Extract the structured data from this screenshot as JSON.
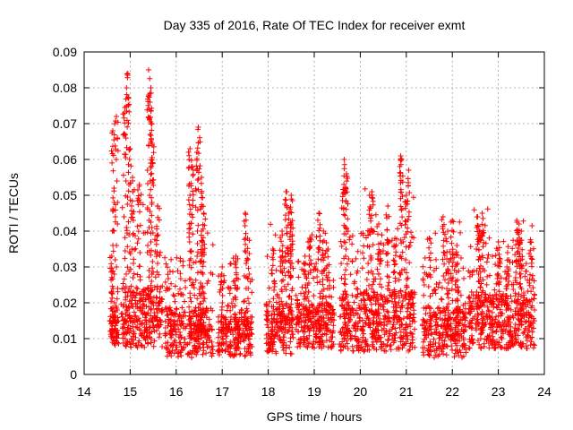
{
  "chart_data": {
    "type": "scatter",
    "title": "Day 335 of 2016, Rate Of TEC Index for receiver exmt",
    "xlabel": "GPS time / hours",
    "ylabel": "ROTI / TECUs",
    "xlim": [
      14,
      24
    ],
    "ylim": [
      0,
      0.09
    ],
    "xticks": [
      "14",
      "15",
      "16",
      "17",
      "18",
      "19",
      "20",
      "21",
      "22",
      "23",
      "24"
    ],
    "yticks": [
      "0",
      "0.01",
      "0.02",
      "0.03",
      "0.04",
      "0.05",
      "0.06",
      "0.07",
      "0.08",
      "0.09"
    ],
    "grid": true,
    "marker": "+",
    "color": "#ff0000",
    "series": [
      {
        "name": "ROTI",
        "clusters": [
          {
            "x_range": [
              14.55,
              14.75
            ],
            "base": 0.012,
            "spread": 0.006,
            "peaks": [
              [
                14.62,
                0.068
              ],
              [
                14.7,
                0.072
              ],
              [
                14.65,
                0.052
              ],
              [
                14.6,
                0.033
              ]
            ]
          },
          {
            "x_range": [
              14.8,
              15.7
            ],
            "base": 0.015,
            "spread": 0.012,
            "peaks": [
              [
                14.95,
                0.084
              ],
              [
                14.92,
                0.08
              ],
              [
                14.88,
                0.073
              ],
              [
                15.0,
                0.063
              ],
              [
                15.4,
                0.085
              ],
              [
                15.45,
                0.08
              ],
              [
                15.43,
                0.076
              ],
              [
                15.47,
                0.07
              ],
              [
                15.48,
                0.064
              ],
              [
                15.2,
                0.053
              ],
              [
                15.6,
                0.047
              ],
              [
                15.05,
                0.055
              ]
            ]
          },
          {
            "x_range": [
              15.75,
              16.8
            ],
            "base": 0.011,
            "spread": 0.01,
            "peaks": [
              [
                16.3,
                0.063
              ],
              [
                16.45,
                0.062
              ],
              [
                16.48,
                0.069
              ],
              [
                16.35,
                0.058
              ],
              [
                16.55,
                0.055
              ],
              [
                16.3,
                0.05
              ],
              [
                16.6,
                0.045
              ],
              [
                16.55,
                0.04
              ]
            ]
          },
          {
            "x_range": [
              16.9,
              17.65
            ],
            "base": 0.01,
            "spread": 0.008,
            "peaks": [
              [
                17.5,
                0.045
              ],
              [
                17.55,
                0.038
              ],
              [
                17.3,
                0.033
              ],
              [
                17.0,
                0.03
              ]
            ]
          },
          {
            "x_range": [
              17.95,
              18.55
            ],
            "base": 0.012,
            "spread": 0.01,
            "peaks": [
              [
                18.4,
                0.051
              ],
              [
                18.5,
                0.05
              ],
              [
                18.45,
                0.045
              ],
              [
                18.3,
                0.04
              ],
              [
                18.5,
                0.042
              ],
              [
                18.1,
                0.035
              ]
            ]
          },
          {
            "x_range": [
              18.6,
              19.45
            ],
            "base": 0.013,
            "spread": 0.009,
            "peaks": [
              [
                19.1,
                0.045
              ],
              [
                18.9,
                0.038
              ],
              [
                19.2,
                0.04
              ],
              [
                19.3,
                0.035
              ],
              [
                18.8,
                0.033
              ]
            ]
          },
          {
            "x_range": [
              19.55,
              21.2
            ],
            "base": 0.014,
            "spread": 0.012,
            "peaks": [
              [
                19.65,
                0.06
              ],
              [
                19.7,
                0.056
              ],
              [
                19.68,
                0.052
              ],
              [
                20.25,
                0.051
              ],
              [
                20.2,
                0.05
              ],
              [
                20.6,
                0.047
              ],
              [
                20.88,
                0.061
              ],
              [
                20.9,
                0.06
              ],
              [
                21.05,
                0.057
              ],
              [
                21.0,
                0.05
              ],
              [
                20.4,
                0.042
              ],
              [
                20.75,
                0.038
              ]
            ]
          },
          {
            "x_range": [
              21.35,
              22.3
            ],
            "base": 0.011,
            "spread": 0.01,
            "peaks": [
              [
                21.8,
                0.044
              ],
              [
                22.0,
                0.043
              ],
              [
                21.5,
                0.038
              ],
              [
                22.1,
                0.036
              ],
              [
                21.9,
                0.04
              ]
            ]
          },
          {
            "x_range": [
              22.35,
              23.8
            ],
            "base": 0.014,
            "spread": 0.011,
            "peaks": [
              [
                22.55,
                0.044
              ],
              [
                22.65,
                0.045
              ],
              [
                22.6,
                0.04
              ],
              [
                23.0,
                0.037
              ],
              [
                23.4,
                0.043
              ],
              [
                23.45,
                0.042
              ],
              [
                23.5,
                0.04
              ],
              [
                23.7,
                0.037
              ],
              [
                23.2,
                0.034
              ]
            ]
          }
        ]
      }
    ]
  }
}
